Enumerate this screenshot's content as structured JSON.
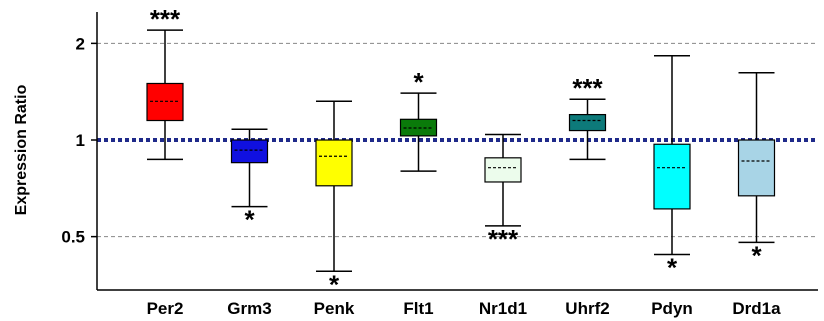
{
  "chart_data": {
    "type": "boxplot",
    "ylabel": "Expression Ratio",
    "y_scale": "log",
    "ylim": [
      0.4,
      2.5
    ],
    "yticks": [
      {
        "value": 0.5,
        "label": "0.5"
      },
      {
        "value": 1,
        "label": "1"
      },
      {
        "value": 2,
        "label": "2"
      }
    ],
    "reference_lines": [
      {
        "value": 2,
        "style": "dashed",
        "color": "#888888"
      },
      {
        "value": 1,
        "style": "dotted-thick",
        "color": "#1f2a8a"
      },
      {
        "value": 0.5,
        "style": "dashed",
        "color": "#888888"
      }
    ],
    "categories": [
      "Per2",
      "Grm3",
      "Penk",
      "Flt1",
      "Nr1d1",
      "Uhrf2",
      "Pdyn",
      "Drd1a"
    ],
    "boxes": [
      {
        "name": "Per2",
        "min": 0.87,
        "q1": 1.15,
        "median": 1.32,
        "q3": 1.5,
        "max": 2.2,
        "color": "#ff0000",
        "significance": "***",
        "sig_position": "above"
      },
      {
        "name": "Grm3",
        "min": 0.62,
        "q1": 0.85,
        "median": 0.93,
        "q3": 1.0,
        "max": 1.08,
        "color": "#1010e0",
        "significance": "*",
        "sig_position": "below"
      },
      {
        "name": "Penk",
        "min": 0.39,
        "q1": 0.72,
        "median": 0.89,
        "q3": 1.0,
        "max": 1.32,
        "color": "#ffff00",
        "significance": "*",
        "sig_position": "below"
      },
      {
        "name": "Flt1",
        "min": 0.8,
        "q1": 1.03,
        "median": 1.09,
        "q3": 1.16,
        "max": 1.4,
        "color": "#0a7a0a",
        "significance": "*",
        "sig_position": "above"
      },
      {
        "name": "Nr1d1",
        "min": 0.54,
        "q1": 0.74,
        "median": 0.82,
        "q3": 0.88,
        "max": 1.04,
        "color": "#ecfcec",
        "significance": "***",
        "sig_position": "below"
      },
      {
        "name": "Uhrf2",
        "min": 0.87,
        "q1": 1.07,
        "median": 1.15,
        "q3": 1.2,
        "max": 1.34,
        "color": "#0d7a7a",
        "significance": "***",
        "sig_position": "above"
      },
      {
        "name": "Pdyn",
        "min": 0.44,
        "q1": 0.61,
        "median": 0.82,
        "q3": 0.97,
        "max": 1.83,
        "color": "#00ffff",
        "significance": "*",
        "sig_position": "below"
      },
      {
        "name": "Drd1a",
        "min": 0.48,
        "q1": 0.67,
        "median": 0.86,
        "q3": 1.0,
        "max": 1.62,
        "color": "#a8d4e6",
        "significance": "*",
        "sig_position": "below"
      }
    ],
    "grid": false,
    "legend": false
  }
}
